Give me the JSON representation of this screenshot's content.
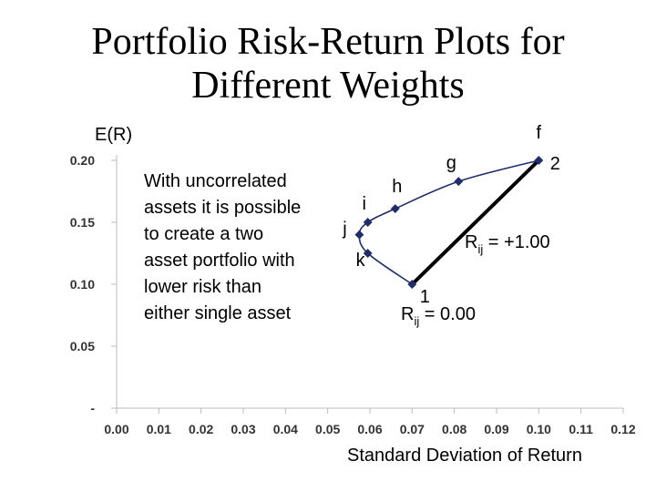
{
  "title_line1": "Portfolio Risk-Return Plots for",
  "title_line2": "Different Weights",
  "chart_data": {
    "type": "scatter",
    "ylabel": "E(R)",
    "xlabel": "Standard Deviation of Return",
    "xlim": [
      0.0,
      0.12
    ],
    "ylim": [
      0.0,
      0.2
    ],
    "x_ticks": [
      "0.00",
      "0.01",
      "0.02",
      "0.03",
      "0.04",
      "0.05",
      "0.06",
      "0.07",
      "0.08",
      "0.09",
      "0.10",
      "0.11",
      "0.12"
    ],
    "y_ticks": [
      "-",
      "0.05",
      "0.10",
      "0.15",
      "0.20"
    ],
    "grid": false,
    "series": [
      {
        "points": [
          {
            "label": "f",
            "x": 0.1,
            "y": 0.2
          },
          {
            "label": "g",
            "x": 0.081,
            "y": 0.183
          },
          {
            "label": "h",
            "x": 0.066,
            "y": 0.161
          },
          {
            "label": "i",
            "x": 0.0595,
            "y": 0.15
          },
          {
            "label": "j",
            "x": 0.0575,
            "y": 0.14
          },
          {
            "label": "k",
            "x": 0.0595,
            "y": 0.125
          },
          {
            "label": "1",
            "x": 0.07,
            "y": 0.1
          }
        ]
      }
    ],
    "line_ends": [
      {
        "x": 0.07,
        "y": 0.1
      },
      {
        "x": 0.1,
        "y": 0.2
      }
    ],
    "endpoint_labels": {
      "asset1": "1",
      "asset2": "2"
    },
    "annotations": {
      "note_lines": [
        "With uncorrelated",
        "assets it is possible",
        "to create a two",
        "asset portfolio with",
        "lower risk than",
        "either single asset"
      ],
      "corr_pos": {
        "prefix": "R",
        "sub": "ij",
        "value": " = +1.00"
      },
      "corr_zero": {
        "prefix": "R",
        "sub": "ij",
        "value": " = 0.00"
      }
    }
  },
  "colors": {
    "curve": "#1f2d6b",
    "line": "#000000",
    "axis": "#bbbbbb"
  }
}
